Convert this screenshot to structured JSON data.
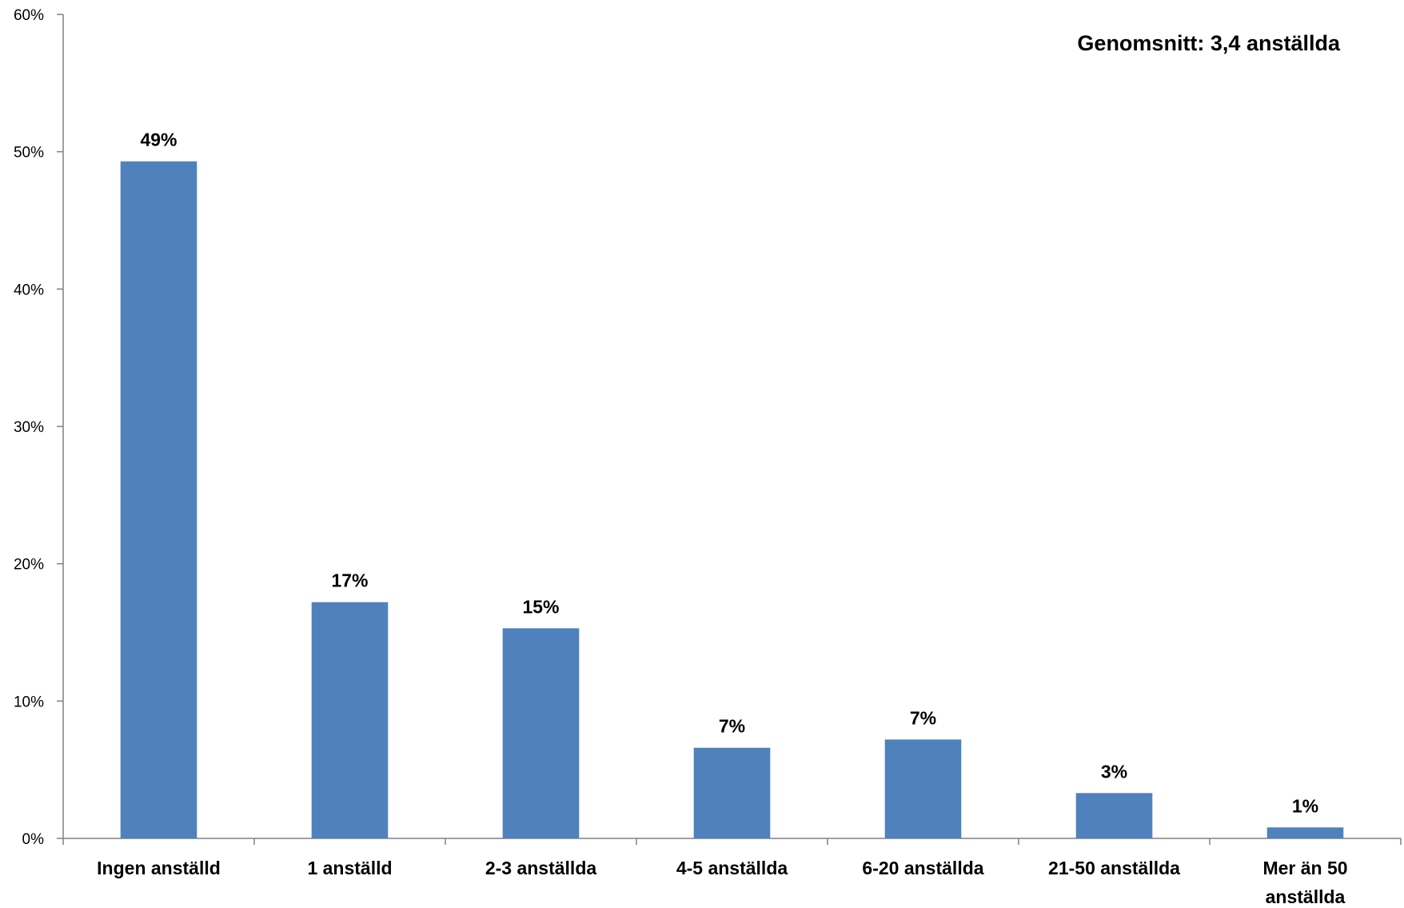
{
  "chart_data": {
    "type": "bar",
    "categories": [
      [
        "Ingen anställd"
      ],
      [
        "1 anställd"
      ],
      [
        "2-3 anställda"
      ],
      [
        "4-5 anställda"
      ],
      [
        "6-20 anställda"
      ],
      [
        "21-50 anställda"
      ],
      [
        "Mer än 50",
        "anställda"
      ]
    ],
    "values": [
      49.3,
      17.2,
      15.3,
      6.6,
      7.2,
      3.3,
      0.8
    ],
    "data_labels": [
      "49%",
      "17%",
      "15%",
      "7%",
      "7%",
      "3%",
      "1%"
    ],
    "title": "",
    "xlabel": "",
    "ylabel": "",
    "ylim": [
      0,
      60
    ],
    "yticks": [
      0,
      10,
      20,
      30,
      40,
      50,
      60
    ],
    "ytick_labels": [
      "0%",
      "10%",
      "20%",
      "30%",
      "40%",
      "50%",
      "60%"
    ],
    "grid": false,
    "legend": "none",
    "bar_color": "#4F81BD",
    "annotation": "Genomsnitt: 3,4 anställda"
  }
}
